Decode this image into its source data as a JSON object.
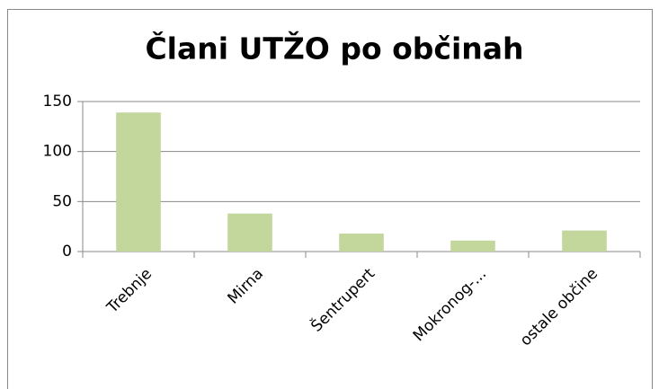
{
  "chart_data": {
    "type": "bar",
    "title": "Člani UTŽO po občinah",
    "categories": [
      "Trebnje",
      "Mirna",
      "Šentrupert",
      "Mokronog-...",
      "ostale občine"
    ],
    "values": [
      139,
      38,
      18,
      11,
      21
    ],
    "color": "#c3d69b",
    "ylim": [
      0,
      150
    ],
    "yticks": [
      0,
      50,
      100,
      150
    ],
    "grid": true
  }
}
